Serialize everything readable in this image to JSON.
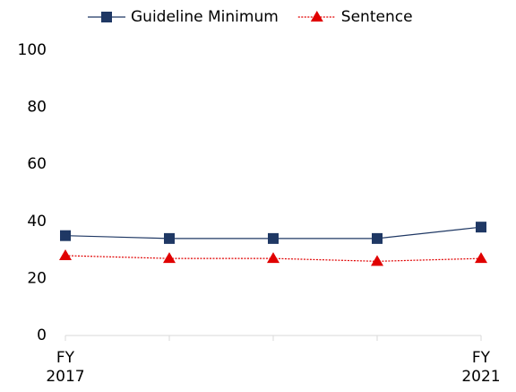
{
  "chart_data": {
    "type": "line",
    "categories": [
      "FY\n2017",
      null,
      null,
      null,
      "FY\n2021"
    ],
    "series": [
      {
        "name": "Guideline Minimum",
        "color": "#1f3864",
        "marker": "square",
        "dash": "solid",
        "values": [
          35,
          34,
          34,
          34,
          38
        ]
      },
      {
        "name": "Sentence",
        "color": "#e00000",
        "marker": "triangle",
        "dash": "dotted",
        "values": [
          28,
          27,
          27,
          26,
          27
        ]
      }
    ],
    "ylim": [
      0,
      100
    ],
    "yticks": [
      0,
      20,
      40,
      60,
      80,
      100
    ],
    "grid": false,
    "legend": "top"
  }
}
